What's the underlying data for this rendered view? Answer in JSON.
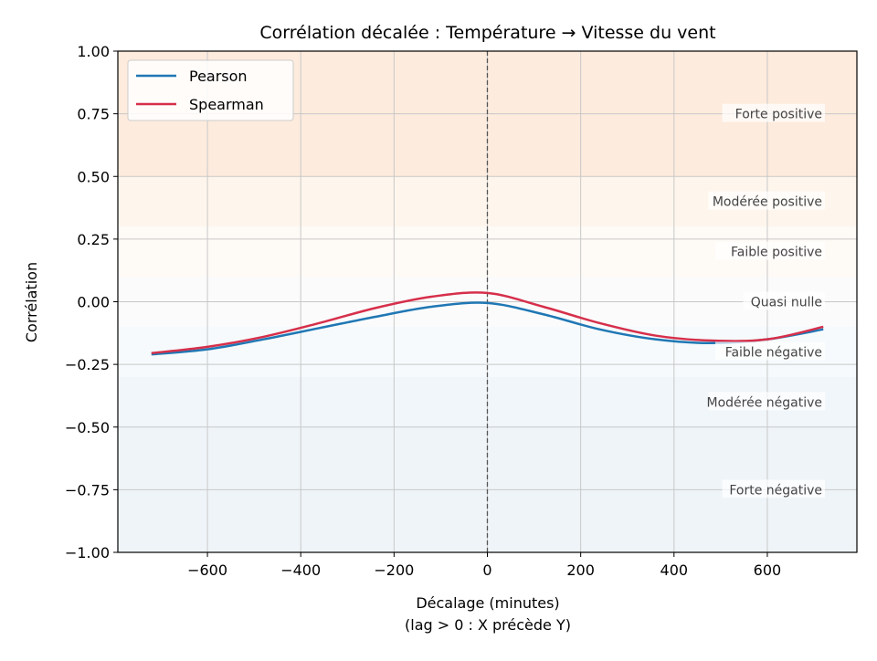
{
  "chart_data": {
    "type": "line",
    "title": "Corrélation décalée : Température → Vitesse du vent",
    "xlabel": "Décalage (minutes)",
    "xlabel2": "(lag > 0 : X précède Y)",
    "ylabel": "Corrélation",
    "xlim": [
      -792,
      792
    ],
    "ylim": [
      -1.0,
      1.0
    ],
    "xticks": [
      -600,
      -400,
      -200,
      0,
      200,
      400,
      600
    ],
    "xtick_labels": [
      "−600",
      "−400",
      "−200",
      "0",
      "200",
      "400",
      "600"
    ],
    "yticks": [
      -1.0,
      -0.75,
      -0.5,
      -0.25,
      0.0,
      0.25,
      0.5,
      0.75,
      1.0
    ],
    "ytick_labels": [
      "−1.00",
      "−0.75",
      "−0.50",
      "−0.25",
      "0.00",
      "0.25",
      "0.50",
      "0.75",
      "1.00"
    ],
    "grid": true,
    "legend_placement": "top-left",
    "reference_line_x": 0,
    "x": [
      -720,
      -600,
      -480,
      -360,
      -240,
      -120,
      0,
      120,
      240,
      360,
      480,
      600,
      720
    ],
    "series": [
      {
        "name": "Pearson",
        "color": "#1f77b4",
        "values": [
          -0.21,
          -0.19,
          -0.15,
          -0.105,
          -0.06,
          -0.02,
          -0.005,
          -0.05,
          -0.11,
          -0.15,
          -0.165,
          -0.15,
          -0.11
        ]
      },
      {
        "name": "Spearman",
        "color": "#d62f4a",
        "values": [
          -0.205,
          -0.18,
          -0.14,
          -0.085,
          -0.025,
          0.02,
          0.035,
          -0.02,
          -0.085,
          -0.135,
          -0.155,
          -0.15,
          -0.1
        ]
      }
    ],
    "bands": [
      {
        "label": "Forte positive",
        "from": 0.5,
        "to": 1.0,
        "label_y": 0.75,
        "color": "#fdebdd"
      },
      {
        "label": "Modérée positive",
        "from": 0.3,
        "to": 0.5,
        "label_y": 0.4,
        "color": "#fef6ec"
      },
      {
        "label": "Faible positive",
        "from": 0.1,
        "to": 0.3,
        "label_y": 0.2,
        "color": "#fefaf6"
      },
      {
        "label": "Quasi nulle",
        "from": -0.1,
        "to": 0.1,
        "label_y": 0.0,
        "color": "#fbfbfc"
      },
      {
        "label": "Faible négative",
        "from": -0.3,
        "to": -0.1,
        "label_y": -0.2,
        "color": "#f6fafc"
      },
      {
        "label": "Modérée négative",
        "from": -0.5,
        "to": -0.3,
        "label_y": -0.4,
        "color": "#f1f6fa"
      },
      {
        "label": "Forte négative",
        "from": -1.0,
        "to": -0.5,
        "label_y": -0.75,
        "color": "#eff4f8"
      }
    ]
  }
}
